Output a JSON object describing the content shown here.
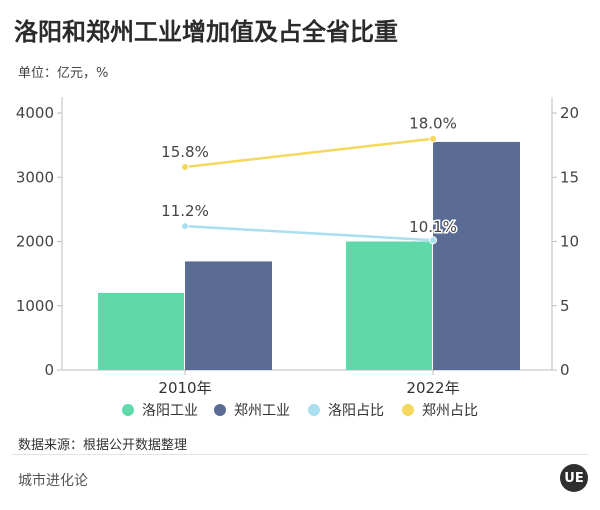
{
  "title": "洛阳和郑州工业增加值及占全省比重",
  "unit_text": "单位：亿元，%",
  "source_text": "数据来源：根据公开数据整理",
  "footer_brand": "城市进化论",
  "logo_text": "UE",
  "colors": {
    "luoyang_industry": "#5fd8aa",
    "zhengzhou_industry": "#5a6b94",
    "luoyang_share": "#a9dff0",
    "zhengzhou_share": "#f5d75b"
  },
  "chart_data": {
    "type": "bar",
    "categories": [
      "2010年",
      "2022年"
    ],
    "series": [
      {
        "name": "洛阳工业",
        "type": "bar",
        "axis": "left",
        "values": [
          1200,
          2000
        ],
        "color": "#5fd8aa"
      },
      {
        "name": "郑州工业",
        "type": "bar",
        "axis": "left",
        "values": [
          1690,
          3550
        ],
        "color": "#5a6b94"
      },
      {
        "name": "洛阳占比",
        "type": "line",
        "axis": "right",
        "values": [
          11.2,
          10.1
        ],
        "labels": [
          "11.2%",
          "10.1%"
        ],
        "color": "#a9dff0"
      },
      {
        "name": "郑州占比",
        "type": "line",
        "axis": "right",
        "values": [
          15.8,
          18.0
        ],
        "labels": [
          "15.8%",
          "18.0%"
        ],
        "color": "#f5d75b"
      }
    ],
    "y_left": {
      "ticks": [
        "4000",
        "3000",
        "2000",
        "1000",
        "0"
      ],
      "lim": [
        0,
        4000
      ]
    },
    "y_right": {
      "ticks": [
        "20",
        "15",
        "10",
        "5",
        "0"
      ],
      "lim": [
        0,
        20
      ]
    },
    "legend_position": "bottom",
    "grid": false
  }
}
